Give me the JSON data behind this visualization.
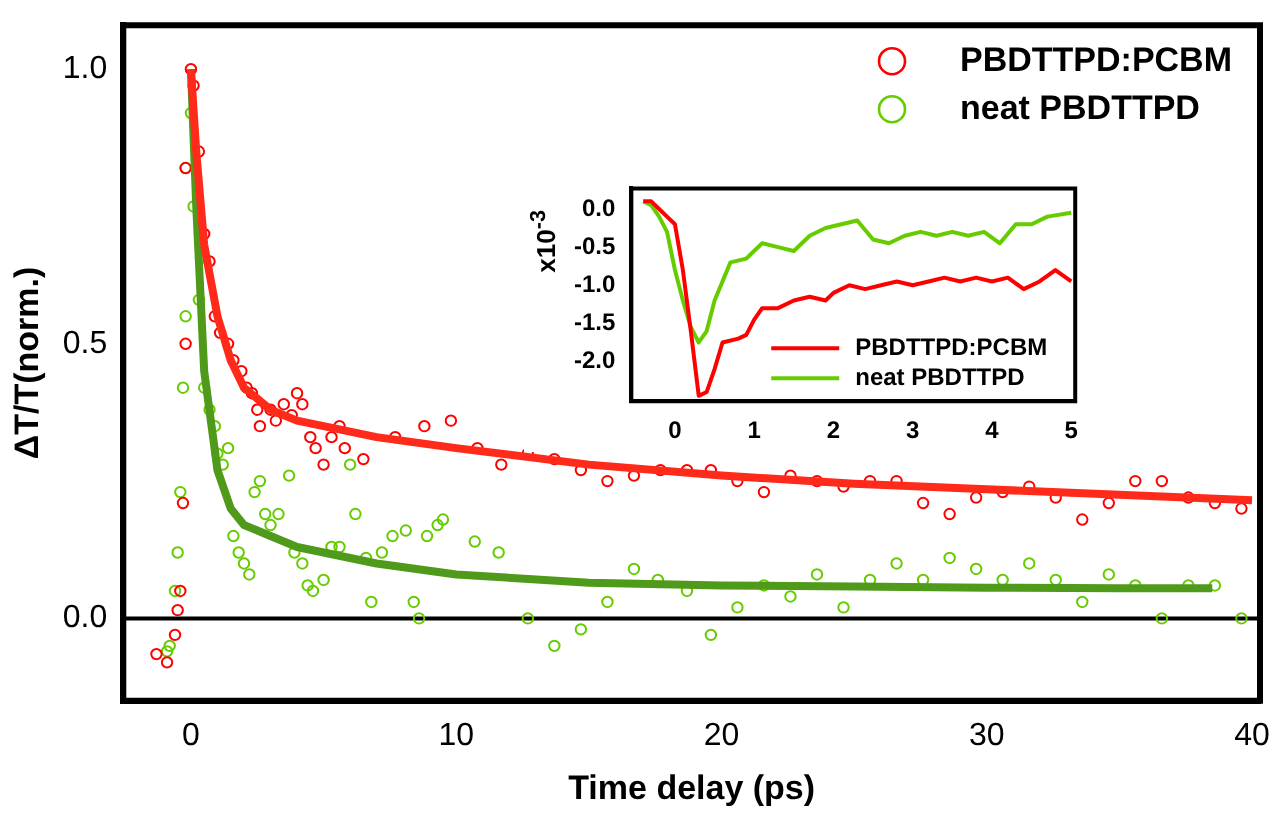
{
  "chart_data": [
    {
      "type": "scatter",
      "xlabel": "Time delay (ps)",
      "ylabel": "ΔT/T(norm.)",
      "xlim": [
        -2.55,
        40.3
      ],
      "ylim": [
        -0.15,
        1.08
      ],
      "xticks": [
        0,
        10,
        20,
        30,
        40
      ],
      "yticks": [
        {
          "value": 0,
          "label": "0.0"
        },
        {
          "value": 0.5,
          "label": "0.5"
        },
        {
          "value": 1,
          "label": "1.0"
        }
      ],
      "legend": "top right",
      "marker": "circle",
      "ref_lines": [
        {
          "axis": "y",
          "value": 0,
          "color": "#000000"
        }
      ],
      "series": [
        {
          "name": "PBDTTPD:PCBM",
          "color": "#ff0000",
          "x": [
            -1.3,
            -0.9,
            -0.6,
            -0.5,
            -0.4,
            -0.3,
            -0.2,
            -0.2,
            0,
            0.1,
            0.3,
            0.5,
            0.7,
            0.9,
            1.1,
            1.4,
            1.6,
            1.9,
            2.1,
            2.3,
            2.5,
            2.6,
            3.0,
            3.2,
            3.5,
            3.8,
            4.0,
            4.2,
            4.5,
            4.7,
            5.0,
            5.3,
            5.6,
            5.8,
            6.5,
            7.7,
            8.8,
            9.8,
            10.8,
            11.7,
            12.7,
            13.7,
            14.7,
            15.7,
            16.7,
            17.7,
            18.7,
            19.6,
            20.6,
            21.6,
            22.6,
            23.6,
            24.6,
            25.6,
            26.6,
            27.6,
            28.6,
            29.6,
            30.6,
            31.6,
            32.6,
            33.6,
            34.6,
            35.6,
            36.6,
            37.6,
            38.6,
            39.6
          ],
          "values": [
            -0.065,
            -0.08,
            -0.03,
            0.015,
            0.05,
            0.21,
            0.5,
            0.82,
            1.0,
            0.97,
            0.85,
            0.7,
            0.65,
            0.55,
            0.52,
            0.5,
            0.47,
            0.45,
            0.42,
            0.41,
            0.38,
            0.35,
            0.38,
            0.36,
            0.39,
            0.37,
            0.41,
            0.39,
            0.33,
            0.31,
            0.28,
            0.33,
            0.35,
            0.31,
            0.29,
            0.33,
            0.35,
            0.36,
            0.31,
            0.28,
            0.3,
            0.29,
            0.27,
            0.25,
            0.26,
            0.27,
            0.27,
            0.27,
            0.25,
            0.23,
            0.26,
            0.25,
            0.24,
            0.25,
            0.25,
            0.21,
            0.19,
            0.22,
            0.23,
            0.24,
            0.22,
            0.18,
            0.21,
            0.25,
            0.25,
            0.22,
            0.21,
            0.2
          ]
        },
        {
          "name": "neat PBDTTPD",
          "color": "#66cc00",
          "x": [
            -0.9,
            -0.8,
            -0.6,
            -0.5,
            -0.4,
            -0.3,
            -0.2,
            -0.2,
            0,
            0.1,
            0.3,
            0.5,
            0.7,
            0.9,
            1.0,
            1.2,
            1.4,
            1.6,
            1.8,
            2.0,
            2.2,
            2.4,
            2.6,
            2.8,
            3.0,
            3.3,
            3.7,
            3.9,
            4.2,
            4.4,
            4.6,
            5.0,
            5.3,
            5.6,
            6.0,
            6.2,
            6.6,
            6.8,
            7.2,
            7.6,
            8.1,
            8.4,
            8.6,
            8.9,
            9.3,
            9.5,
            10.7,
            11.6,
            12.7,
            13.7,
            14.7,
            15.7,
            16.7,
            17.6,
            18.7,
            19.6,
            20.6,
            21.6,
            22.6,
            23.6,
            24.6,
            25.6,
            26.6,
            27.6,
            28.6,
            29.6,
            30.6,
            31.6,
            32.6,
            33.6,
            34.6,
            35.6,
            36.6,
            37.6,
            38.6,
            39.6
          ],
          "values": [
            -0.06,
            -0.05,
            0.05,
            0.12,
            0.23,
            0.42,
            0.55,
            0.82,
            0.92,
            0.75,
            0.58,
            0.42,
            0.38,
            0.35,
            0.3,
            0.28,
            0.31,
            0.15,
            0.12,
            0.1,
            0.08,
            0.23,
            0.25,
            0.19,
            0.17,
            0.19,
            0.26,
            0.12,
            0.1,
            0.06,
            0.05,
            0.07,
            0.13,
            0.13,
            0.28,
            0.19,
            0.11,
            0.03,
            0.12,
            0.15,
            0.16,
            0.03,
            0.0,
            0.15,
            0.17,
            0.18,
            0.14,
            0.12,
            0.0,
            -0.05,
            -0.02,
            0.03,
            0.09,
            0.07,
            0.05,
            -0.03,
            0.02,
            0.06,
            0.04,
            0.08,
            0.02,
            0.07,
            0.1,
            0.07,
            0.11,
            0.09,
            0.07,
            0.1,
            0.07,
            0.03,
            0.08,
            0.06,
            0.0,
            0.06,
            0.06,
            0.0
          ]
        },
        {
          "type": "line",
          "marker": "none",
          "color": "#ff2a1a",
          "x": [
            0,
            0.2,
            0.5,
            1,
            1.5,
            2,
            3,
            4,
            5,
            7,
            10,
            15,
            20,
            25,
            30,
            35,
            40
          ],
          "values": [
            1.0,
            0.85,
            0.68,
            0.55,
            0.47,
            0.42,
            0.38,
            0.36,
            0.35,
            0.33,
            0.31,
            0.28,
            0.26,
            0.245,
            0.235,
            0.225,
            0.215
          ]
        },
        {
          "type": "line",
          "marker": "none",
          "color": "#4f9a1a",
          "x": [
            0,
            0.2,
            0.5,
            1,
            1.5,
            2,
            3,
            4,
            5,
            7,
            10,
            15,
            20,
            25,
            30,
            35,
            38.5
          ],
          "values": [
            1.0,
            0.75,
            0.45,
            0.27,
            0.2,
            0.17,
            0.15,
            0.13,
            0.12,
            0.1,
            0.08,
            0.065,
            0.06,
            0.058,
            0.056,
            0.055,
            0.055
          ]
        }
      ]
    },
    {
      "type": "line",
      "ylabel": "x10$^{-3}$",
      "xlim": [
        -0.55,
        5.05
      ],
      "ylim": [
        -2.52,
        0.27
      ],
      "xticks": [
        0,
        1,
        2,
        3,
        4,
        5
      ],
      "yticks": [
        {
          "value": -2,
          "label": "-2.0"
        },
        {
          "value": -1.5,
          "label": "-1.5"
        },
        {
          "value": -1,
          "label": "-1.0"
        },
        {
          "value": -0.5,
          "label": "-0.5"
        },
        {
          "value": 0,
          "label": "0.0"
        }
      ],
      "legend": "bottom right",
      "marker": "none",
      "series": [
        {
          "name": "PBDTTPD:PCBM",
          "color": "#ff0000",
          "x": [
            -0.4,
            -0.3,
            -0.2,
            -0.1,
            0,
            0.1,
            0.2,
            0.3,
            0.4,
            0.5,
            0.6,
            0.8,
            0.9,
            1.0,
            1.1,
            1.3,
            1.5,
            1.7,
            1.9,
            2.0,
            2.2,
            2.4,
            2.6,
            2.8,
            3.0,
            3.2,
            3.4,
            3.6,
            3.8,
            4.0,
            4.2,
            4.4,
            4.6,
            4.8,
            5.0
          ],
          "values": [
            0.1,
            0.1,
            0.0,
            -0.1,
            -0.2,
            -0.8,
            -1.6,
            -2.45,
            -2.4,
            -2.1,
            -1.75,
            -1.7,
            -1.65,
            -1.45,
            -1.3,
            -1.3,
            -1.2,
            -1.15,
            -1.2,
            -1.1,
            -1.0,
            -1.05,
            -1.0,
            -0.95,
            -1.0,
            -0.95,
            -0.9,
            -0.95,
            -0.9,
            -0.95,
            -0.9,
            -1.05,
            -0.95,
            -0.8,
            -0.95
          ]
        },
        {
          "name": "neat PBDTTPD",
          "color": "#66cc00",
          "x": [
            -0.4,
            -0.3,
            -0.2,
            -0.1,
            0,
            0.1,
            0.2,
            0.3,
            0.4,
            0.5,
            0.7,
            0.9,
            1.1,
            1.3,
            1.5,
            1.7,
            1.9,
            2.1,
            2.3,
            2.5,
            2.7,
            2.9,
            3.1,
            3.3,
            3.5,
            3.7,
            3.9,
            4.1,
            4.3,
            4.5,
            4.7,
            5.0
          ],
          "values": [
            0.1,
            0.05,
            -0.1,
            -0.3,
            -0.8,
            -1.2,
            -1.55,
            -1.75,
            -1.6,
            -1.2,
            -0.7,
            -0.65,
            -0.45,
            -0.5,
            -0.55,
            -0.35,
            -0.25,
            -0.2,
            -0.15,
            -0.4,
            -0.45,
            -0.35,
            -0.3,
            -0.35,
            -0.3,
            -0.35,
            -0.3,
            -0.45,
            -0.2,
            -0.2,
            -0.1,
            -0.05
          ]
        }
      ]
    }
  ]
}
